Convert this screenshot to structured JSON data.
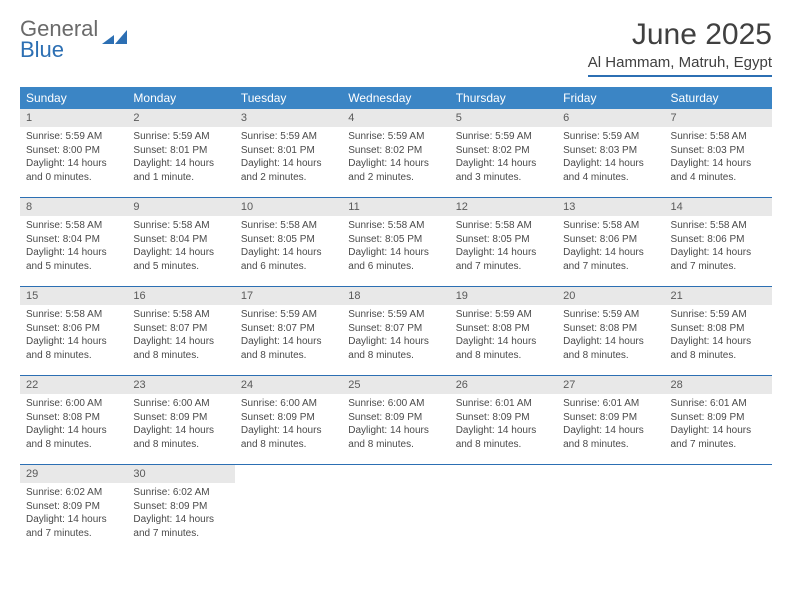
{
  "brand": {
    "word1": "General",
    "word2": "Blue",
    "word1_color": "#6a6a6a",
    "word2_color": "#2c6fb3",
    "mark_color": "#2c6fb3"
  },
  "header": {
    "title": "June 2025",
    "location": "Al Hammam, Matruh, Egypt"
  },
  "style": {
    "header_bg": "#3b85c5",
    "header_text": "#ffffff",
    "daynum_bg": "#e8e8e8",
    "daynum_text": "#5a5a5a",
    "rule_color": "#2c6fb3",
    "body_text": "#4a4a4a",
    "page_bg": "#ffffff",
    "title_color": "#404040",
    "body_fontsize": 10,
    "header_fontsize": 12,
    "title_fontsize": 30
  },
  "dayNames": [
    "Sunday",
    "Monday",
    "Tuesday",
    "Wednesday",
    "Thursday",
    "Friday",
    "Saturday"
  ],
  "weeks": [
    [
      {
        "n": "1",
        "sr": "Sunrise: 5:59 AM",
        "ss": "Sunset: 8:00 PM",
        "dl": "Daylight: 14 hours and 0 minutes."
      },
      {
        "n": "2",
        "sr": "Sunrise: 5:59 AM",
        "ss": "Sunset: 8:01 PM",
        "dl": "Daylight: 14 hours and 1 minute."
      },
      {
        "n": "3",
        "sr": "Sunrise: 5:59 AM",
        "ss": "Sunset: 8:01 PM",
        "dl": "Daylight: 14 hours and 2 minutes."
      },
      {
        "n": "4",
        "sr": "Sunrise: 5:59 AM",
        "ss": "Sunset: 8:02 PM",
        "dl": "Daylight: 14 hours and 2 minutes."
      },
      {
        "n": "5",
        "sr": "Sunrise: 5:59 AM",
        "ss": "Sunset: 8:02 PM",
        "dl": "Daylight: 14 hours and 3 minutes."
      },
      {
        "n": "6",
        "sr": "Sunrise: 5:59 AM",
        "ss": "Sunset: 8:03 PM",
        "dl": "Daylight: 14 hours and 4 minutes."
      },
      {
        "n": "7",
        "sr": "Sunrise: 5:58 AM",
        "ss": "Sunset: 8:03 PM",
        "dl": "Daylight: 14 hours and 4 minutes."
      }
    ],
    [
      {
        "n": "8",
        "sr": "Sunrise: 5:58 AM",
        "ss": "Sunset: 8:04 PM",
        "dl": "Daylight: 14 hours and 5 minutes."
      },
      {
        "n": "9",
        "sr": "Sunrise: 5:58 AM",
        "ss": "Sunset: 8:04 PM",
        "dl": "Daylight: 14 hours and 5 minutes."
      },
      {
        "n": "10",
        "sr": "Sunrise: 5:58 AM",
        "ss": "Sunset: 8:05 PM",
        "dl": "Daylight: 14 hours and 6 minutes."
      },
      {
        "n": "11",
        "sr": "Sunrise: 5:58 AM",
        "ss": "Sunset: 8:05 PM",
        "dl": "Daylight: 14 hours and 6 minutes."
      },
      {
        "n": "12",
        "sr": "Sunrise: 5:58 AM",
        "ss": "Sunset: 8:05 PM",
        "dl": "Daylight: 14 hours and 7 minutes."
      },
      {
        "n": "13",
        "sr": "Sunrise: 5:58 AM",
        "ss": "Sunset: 8:06 PM",
        "dl": "Daylight: 14 hours and 7 minutes."
      },
      {
        "n": "14",
        "sr": "Sunrise: 5:58 AM",
        "ss": "Sunset: 8:06 PM",
        "dl": "Daylight: 14 hours and 7 minutes."
      }
    ],
    [
      {
        "n": "15",
        "sr": "Sunrise: 5:58 AM",
        "ss": "Sunset: 8:06 PM",
        "dl": "Daylight: 14 hours and 8 minutes."
      },
      {
        "n": "16",
        "sr": "Sunrise: 5:58 AM",
        "ss": "Sunset: 8:07 PM",
        "dl": "Daylight: 14 hours and 8 minutes."
      },
      {
        "n": "17",
        "sr": "Sunrise: 5:59 AM",
        "ss": "Sunset: 8:07 PM",
        "dl": "Daylight: 14 hours and 8 minutes."
      },
      {
        "n": "18",
        "sr": "Sunrise: 5:59 AM",
        "ss": "Sunset: 8:07 PM",
        "dl": "Daylight: 14 hours and 8 minutes."
      },
      {
        "n": "19",
        "sr": "Sunrise: 5:59 AM",
        "ss": "Sunset: 8:08 PM",
        "dl": "Daylight: 14 hours and 8 minutes."
      },
      {
        "n": "20",
        "sr": "Sunrise: 5:59 AM",
        "ss": "Sunset: 8:08 PM",
        "dl": "Daylight: 14 hours and 8 minutes."
      },
      {
        "n": "21",
        "sr": "Sunrise: 5:59 AM",
        "ss": "Sunset: 8:08 PM",
        "dl": "Daylight: 14 hours and 8 minutes."
      }
    ],
    [
      {
        "n": "22",
        "sr": "Sunrise: 6:00 AM",
        "ss": "Sunset: 8:08 PM",
        "dl": "Daylight: 14 hours and 8 minutes."
      },
      {
        "n": "23",
        "sr": "Sunrise: 6:00 AM",
        "ss": "Sunset: 8:09 PM",
        "dl": "Daylight: 14 hours and 8 minutes."
      },
      {
        "n": "24",
        "sr": "Sunrise: 6:00 AM",
        "ss": "Sunset: 8:09 PM",
        "dl": "Daylight: 14 hours and 8 minutes."
      },
      {
        "n": "25",
        "sr": "Sunrise: 6:00 AM",
        "ss": "Sunset: 8:09 PM",
        "dl": "Daylight: 14 hours and 8 minutes."
      },
      {
        "n": "26",
        "sr": "Sunrise: 6:01 AM",
        "ss": "Sunset: 8:09 PM",
        "dl": "Daylight: 14 hours and 8 minutes."
      },
      {
        "n": "27",
        "sr": "Sunrise: 6:01 AM",
        "ss": "Sunset: 8:09 PM",
        "dl": "Daylight: 14 hours and 8 minutes."
      },
      {
        "n": "28",
        "sr": "Sunrise: 6:01 AM",
        "ss": "Sunset: 8:09 PM",
        "dl": "Daylight: 14 hours and 7 minutes."
      }
    ],
    [
      {
        "n": "29",
        "sr": "Sunrise: 6:02 AM",
        "ss": "Sunset: 8:09 PM",
        "dl": "Daylight: 14 hours and 7 minutes."
      },
      {
        "n": "30",
        "sr": "Sunrise: 6:02 AM",
        "ss": "Sunset: 8:09 PM",
        "dl": "Daylight: 14 hours and 7 minutes."
      },
      {
        "empty": true
      },
      {
        "empty": true
      },
      {
        "empty": true
      },
      {
        "empty": true
      },
      {
        "empty": true
      }
    ]
  ]
}
